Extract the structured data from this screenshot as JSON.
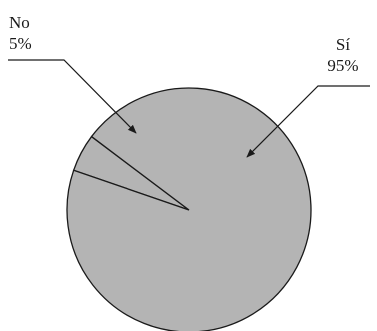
{
  "chart_data": {
    "type": "pie",
    "slices": [
      {
        "label": "Sí",
        "value": 95,
        "value_label": "95%",
        "color": "#b4b4b4"
      },
      {
        "label": "No",
        "value": 5,
        "value_label": "5%",
        "color": "#b4b4b4"
      }
    ],
    "stroke_color": "#1a1a1a",
    "callout_color": "#1a1a1a"
  }
}
